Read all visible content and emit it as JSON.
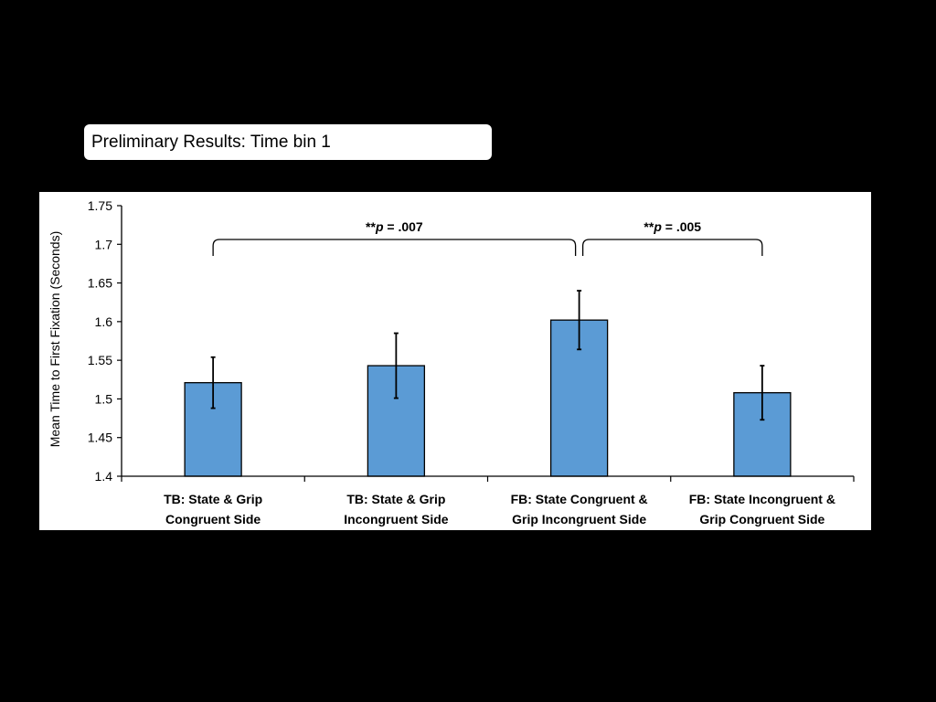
{
  "slide": {
    "title": "Preliminary Results: Time bin 1"
  },
  "chart_data": {
    "type": "bar",
    "ylabel": "Mean Time to First Fixation (Seconds)",
    "xlabel": "",
    "ylim": [
      1.4,
      1.75
    ],
    "yticks": [
      "1.4",
      "1.45",
      "1.5",
      "1.55",
      "1.6",
      "1.65",
      "1.7",
      "1.75"
    ],
    "categories": [
      [
        "TB: State & Grip",
        "Congruent Side"
      ],
      [
        "TB: State & Grip",
        "Incongruent Side"
      ],
      [
        "FB: State Congruent &",
        "Grip Incongruent Side"
      ],
      [
        "FB: State Incongruent &",
        "Grip Congruent Side"
      ]
    ],
    "values": [
      1.521,
      1.543,
      1.602,
      1.508
    ],
    "error": [
      0.033,
      0.042,
      0.038,
      0.035
    ],
    "bar_color": "#5b9bd5",
    "grid": false,
    "annotations": [
      {
        "prefix": "**",
        "italic": "p",
        "suffix": " = .007",
        "from": 0,
        "to": 2
      },
      {
        "prefix": "**",
        "italic": "p",
        "suffix": " = .005",
        "from": 2,
        "to": 3
      }
    ]
  }
}
